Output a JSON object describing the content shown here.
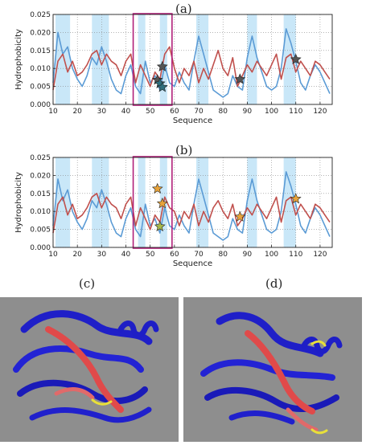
{
  "chart_data": [
    {
      "type": "line",
      "panel_label": "(a)",
      "xlabel": "Sequence",
      "ylabel": "Hydrophobicity",
      "xlim": [
        10,
        125
      ],
      "ylim": [
        0,
        0.025
      ],
      "xticks": [
        "10",
        "20",
        "30",
        "40",
        "50",
        "60",
        "70",
        "80",
        "90",
        "100",
        "110",
        "120"
      ],
      "yticks": [
        "0.000",
        "0.005",
        "0.010",
        "0.015",
        "0.020",
        "0.025"
      ],
      "grid": true,
      "highlight_bands": [
        [
          11,
          17
        ],
        [
          26,
          33
        ],
        [
          45,
          48
        ],
        [
          54,
          57
        ],
        [
          69,
          74
        ],
        [
          90,
          94
        ],
        [
          105,
          110
        ]
      ],
      "highlight_box": [
        43,
        59
      ],
      "series": [
        {
          "color": "#5b9bd5",
          "x": [
            10,
            12,
            14,
            16,
            18,
            20,
            22,
            24,
            26,
            28,
            30,
            32,
            34,
            36,
            38,
            40,
            42,
            44,
            46,
            48,
            50,
            52,
            54,
            56,
            58,
            60,
            62,
            64,
            66,
            68,
            70,
            72,
            74,
            76,
            78,
            80,
            82,
            84,
            86,
            88,
            90,
            92,
            94,
            96,
            98,
            100,
            102,
            104,
            106,
            108,
            110,
            112,
            114,
            116,
            118,
            120,
            122,
            124
          ],
          "y": [
            0.006,
            0.02,
            0.014,
            0.016,
            0.01,
            0.007,
            0.005,
            0.008,
            0.013,
            0.011,
            0.016,
            0.012,
            0.007,
            0.004,
            0.003,
            0.008,
            0.011,
            0.005,
            0.003,
            0.012,
            0.006,
            0.008,
            0.004,
            0.011,
            0.006,
            0.005,
            0.009,
            0.006,
            0.004,
            0.012,
            0.019,
            0.014,
            0.009,
            0.004,
            0.003,
            0.002,
            0.003,
            0.008,
            0.005,
            0.004,
            0.013,
            0.019,
            0.013,
            0.009,
            0.005,
            0.004,
            0.005,
            0.01,
            0.021,
            0.017,
            0.012,
            0.006,
            0.004,
            0.008,
            0.011,
            0.009,
            0.006,
            0.003
          ]
        },
        {
          "color": "#c0504d",
          "x": [
            10,
            12,
            14,
            16,
            18,
            20,
            22,
            24,
            26,
            28,
            30,
            32,
            34,
            36,
            38,
            40,
            42,
            44,
            46,
            48,
            50,
            52,
            54,
            56,
            58,
            60,
            62,
            64,
            66,
            68,
            70,
            72,
            74,
            76,
            78,
            80,
            82,
            84,
            86,
            88,
            90,
            92,
            94,
            96,
            98,
            100,
            102,
            104,
            106,
            108,
            110,
            112,
            114,
            116,
            118,
            120,
            122,
            124
          ],
          "y": [
            0.004,
            0.012,
            0.014,
            0.009,
            0.012,
            0.008,
            0.009,
            0.011,
            0.014,
            0.015,
            0.011,
            0.014,
            0.012,
            0.011,
            0.008,
            0.012,
            0.014,
            0.006,
            0.011,
            0.008,
            0.005,
            0.009,
            0.007,
            0.014,
            0.016,
            0.01,
            0.006,
            0.01,
            0.008,
            0.012,
            0.006,
            0.01,
            0.007,
            0.011,
            0.015,
            0.01,
            0.008,
            0.013,
            0.005,
            0.008,
            0.011,
            0.009,
            0.012,
            0.01,
            0.008,
            0.011,
            0.014,
            0.007,
            0.013,
            0.014,
            0.009,
            0.012,
            0.01,
            0.008,
            0.012,
            0.011,
            0.009,
            0.007
          ]
        }
      ],
      "markers": [
        {
          "x": 55,
          "y": 0.0105,
          "fill": "#555555"
        },
        {
          "x": 53,
          "y": 0.0068,
          "fill": "#555555"
        },
        {
          "x": 54,
          "y": 0.0058,
          "fill": "#2e6f7e"
        },
        {
          "x": 55,
          "y": 0.0048,
          "fill": "#2e6f7e"
        },
        {
          "x": 87,
          "y": 0.007,
          "fill": "#555555"
        },
        {
          "x": 110,
          "y": 0.0125,
          "fill": "#555555"
        }
      ]
    },
    {
      "type": "line",
      "panel_label": "(b)",
      "xlabel": "Sequence",
      "ylabel": "Hydrophobicity",
      "xlim": [
        10,
        125
      ],
      "ylim": [
        0,
        0.025
      ],
      "xticks": [
        "10",
        "20",
        "30",
        "40",
        "50",
        "60",
        "70",
        "80",
        "90",
        "100",
        "110",
        "120"
      ],
      "yticks": [
        "0.000",
        "0.005",
        "0.010",
        "0.015",
        "0.020",
        "0.025"
      ],
      "grid": true,
      "highlight_bands": [
        [
          11,
          17
        ],
        [
          26,
          33
        ],
        [
          45,
          48
        ],
        [
          54,
          57
        ],
        [
          69,
          74
        ],
        [
          90,
          94
        ],
        [
          105,
          110
        ]
      ],
      "highlight_box": [
        43,
        59
      ],
      "series": [
        {
          "color": "#5b9bd5",
          "x": [
            10,
            12,
            14,
            16,
            18,
            20,
            22,
            24,
            26,
            28,
            30,
            32,
            34,
            36,
            38,
            40,
            42,
            44,
            46,
            48,
            50,
            52,
            54,
            56,
            58,
            60,
            62,
            64,
            66,
            68,
            70,
            72,
            74,
            76,
            78,
            80,
            82,
            84,
            86,
            88,
            90,
            92,
            94,
            96,
            98,
            100,
            102,
            104,
            106,
            108,
            110,
            112,
            114,
            116,
            118,
            120,
            122,
            124
          ],
          "y": [
            0.006,
            0.019,
            0.013,
            0.016,
            0.01,
            0.007,
            0.005,
            0.008,
            0.013,
            0.011,
            0.016,
            0.012,
            0.007,
            0.004,
            0.003,
            0.008,
            0.011,
            0.005,
            0.003,
            0.012,
            0.006,
            0.008,
            0.004,
            0.011,
            0.006,
            0.005,
            0.009,
            0.006,
            0.004,
            0.012,
            0.019,
            0.014,
            0.009,
            0.004,
            0.003,
            0.002,
            0.003,
            0.008,
            0.005,
            0.004,
            0.013,
            0.019,
            0.013,
            0.009,
            0.005,
            0.004,
            0.005,
            0.01,
            0.021,
            0.017,
            0.012,
            0.006,
            0.004,
            0.008,
            0.011,
            0.009,
            0.006,
            0.003
          ]
        },
        {
          "color": "#c0504d",
          "x": [
            10,
            12,
            14,
            16,
            18,
            20,
            22,
            24,
            26,
            28,
            30,
            32,
            34,
            36,
            38,
            40,
            42,
            44,
            46,
            48,
            50,
            52,
            54,
            56,
            58,
            60,
            62,
            64,
            66,
            68,
            70,
            72,
            74,
            76,
            78,
            80,
            82,
            84,
            86,
            88,
            90,
            92,
            94,
            96,
            98,
            100,
            102,
            104,
            106,
            108,
            110,
            112,
            114,
            116,
            118,
            120,
            122,
            124
          ],
          "y": [
            0.004,
            0.012,
            0.014,
            0.009,
            0.012,
            0.008,
            0.009,
            0.011,
            0.014,
            0.015,
            0.011,
            0.014,
            0.012,
            0.011,
            0.008,
            0.012,
            0.014,
            0.006,
            0.011,
            0.008,
            0.005,
            0.009,
            0.007,
            0.014,
            0.011,
            0.01,
            0.006,
            0.01,
            0.008,
            0.012,
            0.006,
            0.01,
            0.007,
            0.011,
            0.013,
            0.01,
            0.008,
            0.012,
            0.006,
            0.008,
            0.011,
            0.009,
            0.012,
            0.01,
            0.008,
            0.011,
            0.014,
            0.007,
            0.013,
            0.014,
            0.009,
            0.012,
            0.01,
            0.008,
            0.012,
            0.011,
            0.009,
            0.007
          ]
        }
      ],
      "markers": [
        {
          "x": 53,
          "y": 0.0163,
          "fill": "#e8a33a"
        },
        {
          "x": 55,
          "y": 0.0122,
          "fill": "#e8a33a"
        },
        {
          "x": 54,
          "y": 0.0058,
          "fill": "#a7b84a"
        },
        {
          "x": 87,
          "y": 0.0085,
          "fill": "#e8a33a"
        },
        {
          "x": 110,
          "y": 0.0135,
          "fill": "#e8a33a"
        }
      ]
    }
  ],
  "structure_panels": [
    {
      "label": "(c)"
    },
    {
      "label": "(d)"
    }
  ]
}
